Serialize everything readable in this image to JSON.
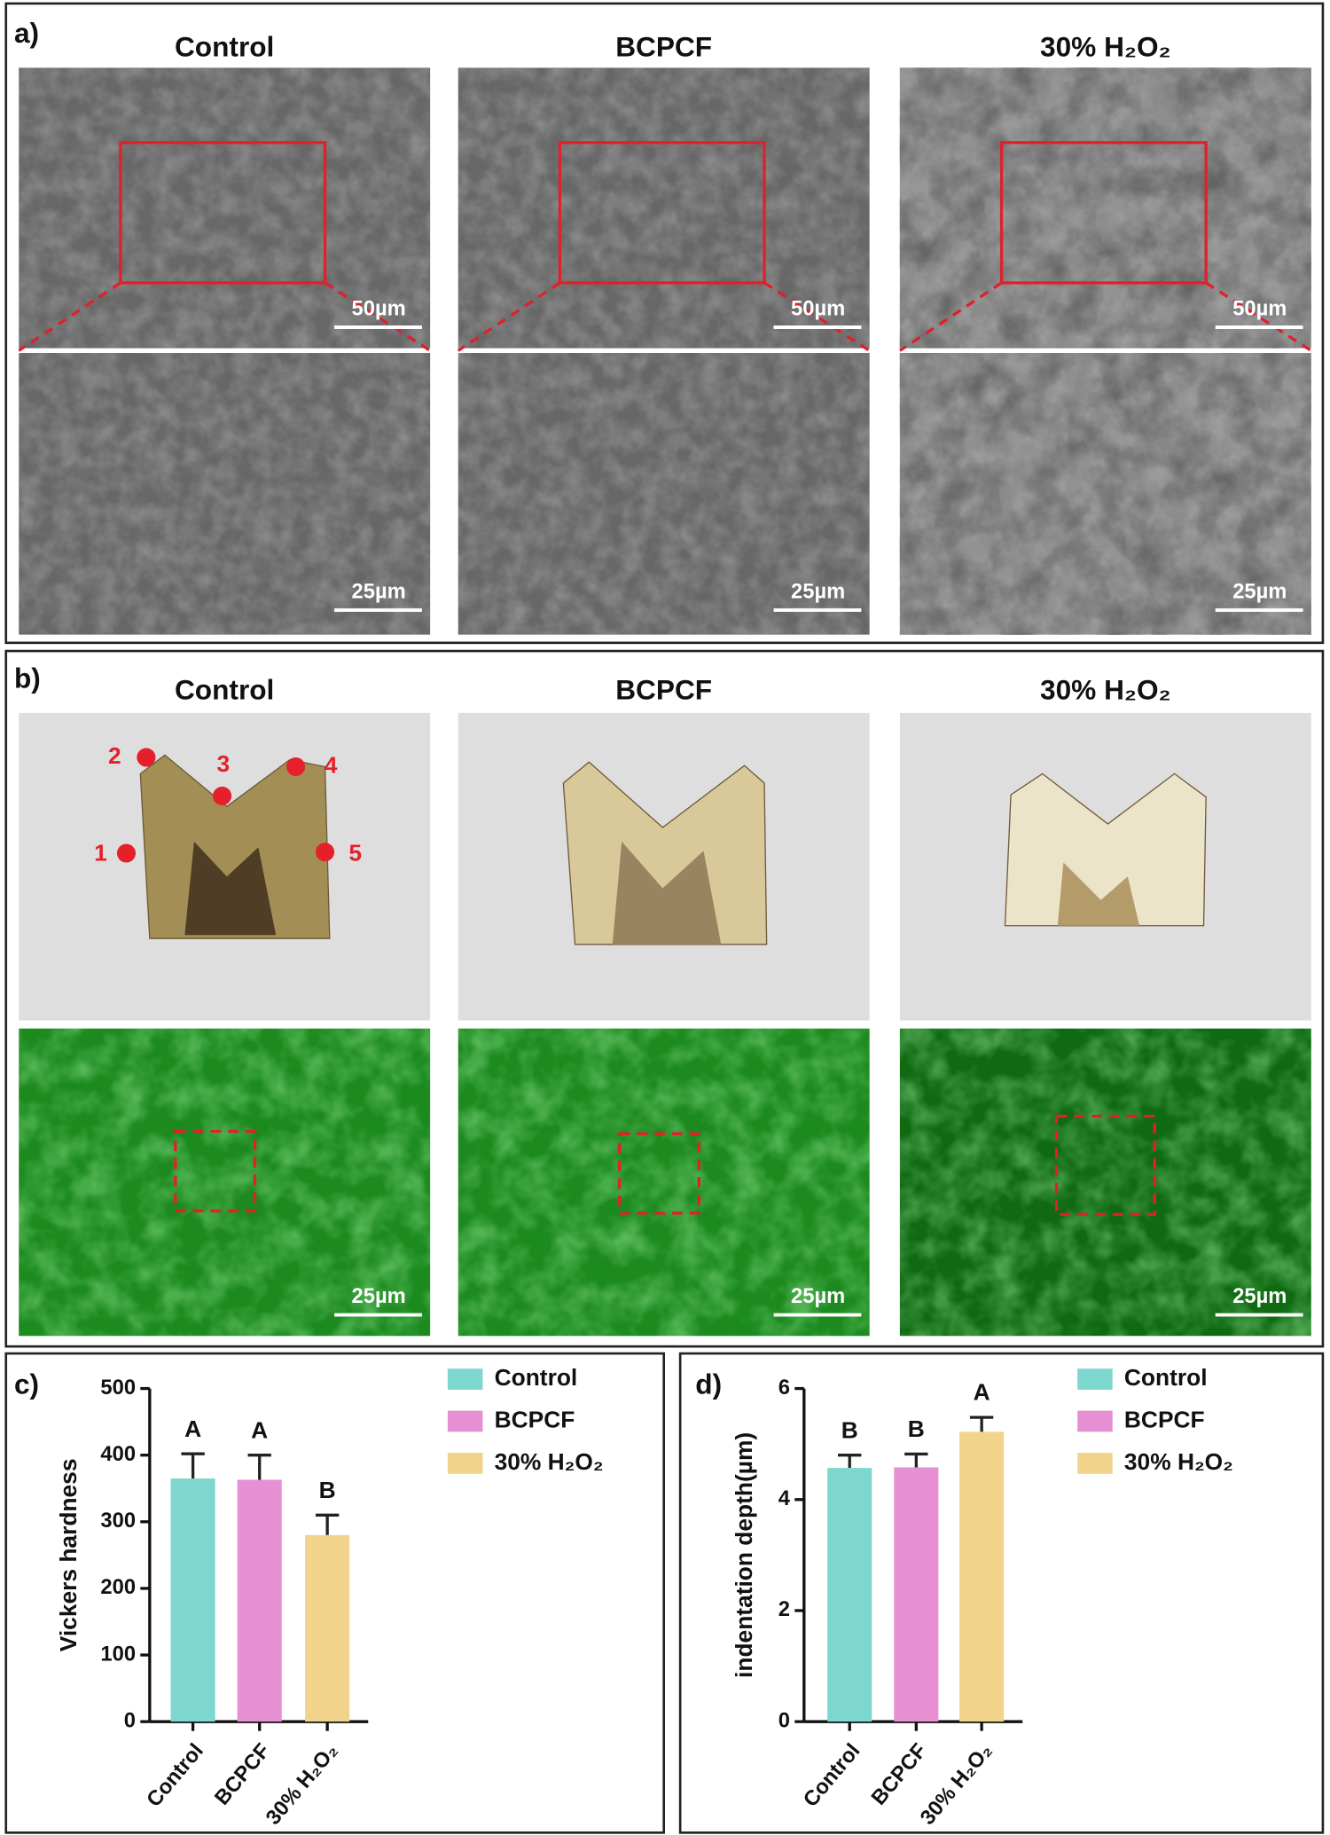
{
  "panels": [
    {
      "label": "a)",
      "columns": [
        {
          "title": "Control",
          "top_scale": "50µm",
          "bottom_scale": "25µm"
        },
        {
          "title": "BCPCF",
          "top_scale": "50µm",
          "bottom_scale": "25µm"
        },
        {
          "title": "30% H₂O₂",
          "top_scale": "50µm",
          "bottom_scale": "25µm"
        }
      ]
    },
    {
      "label": "b)",
      "columns": [
        {
          "title": "Control",
          "bottom_scale": "25µm"
        },
        {
          "title": "BCPCF",
          "bottom_scale": "25µm"
        },
        {
          "title": "30% H₂O₂",
          "bottom_scale": "25µm"
        }
      ],
      "points": [
        "1",
        "2",
        "3",
        "4",
        "5"
      ]
    }
  ],
  "chart_data": [
    {
      "type": "bar",
      "panel_label": "c)",
      "y_label": "Vickers hardness",
      "categories": [
        "Control",
        "BCPCF",
        "30% H₂O₂"
      ],
      "values": [
        365,
        363,
        280
      ],
      "errors": [
        37,
        37,
        30
      ],
      "value_annotations": [
        "A",
        "A",
        "B"
      ],
      "colors": [
        "#7dd7cf",
        "#e68fd2",
        "#f2d38c"
      ],
      "ylim": [
        0,
        500
      ],
      "yticks": [
        0,
        100,
        200,
        300,
        400,
        500
      ],
      "legend": true
    },
    {
      "type": "bar",
      "panel_label": "d)",
      "y_label": "indentation depth(µm)",
      "categories": [
        "Control",
        "BCPCF",
        "30% H₂O₂"
      ],
      "values": [
        4.57,
        4.58,
        5.22
      ],
      "errors": [
        0.23,
        0.24,
        0.26
      ],
      "value_annotations": [
        "B",
        "B",
        "A"
      ],
      "colors": [
        "#7dd7cf",
        "#e68fd2",
        "#f2d38c"
      ],
      "ylim": [
        0,
        6
      ],
      "yticks": [
        0,
        2,
        4,
        6
      ],
      "legend": true
    }
  ]
}
